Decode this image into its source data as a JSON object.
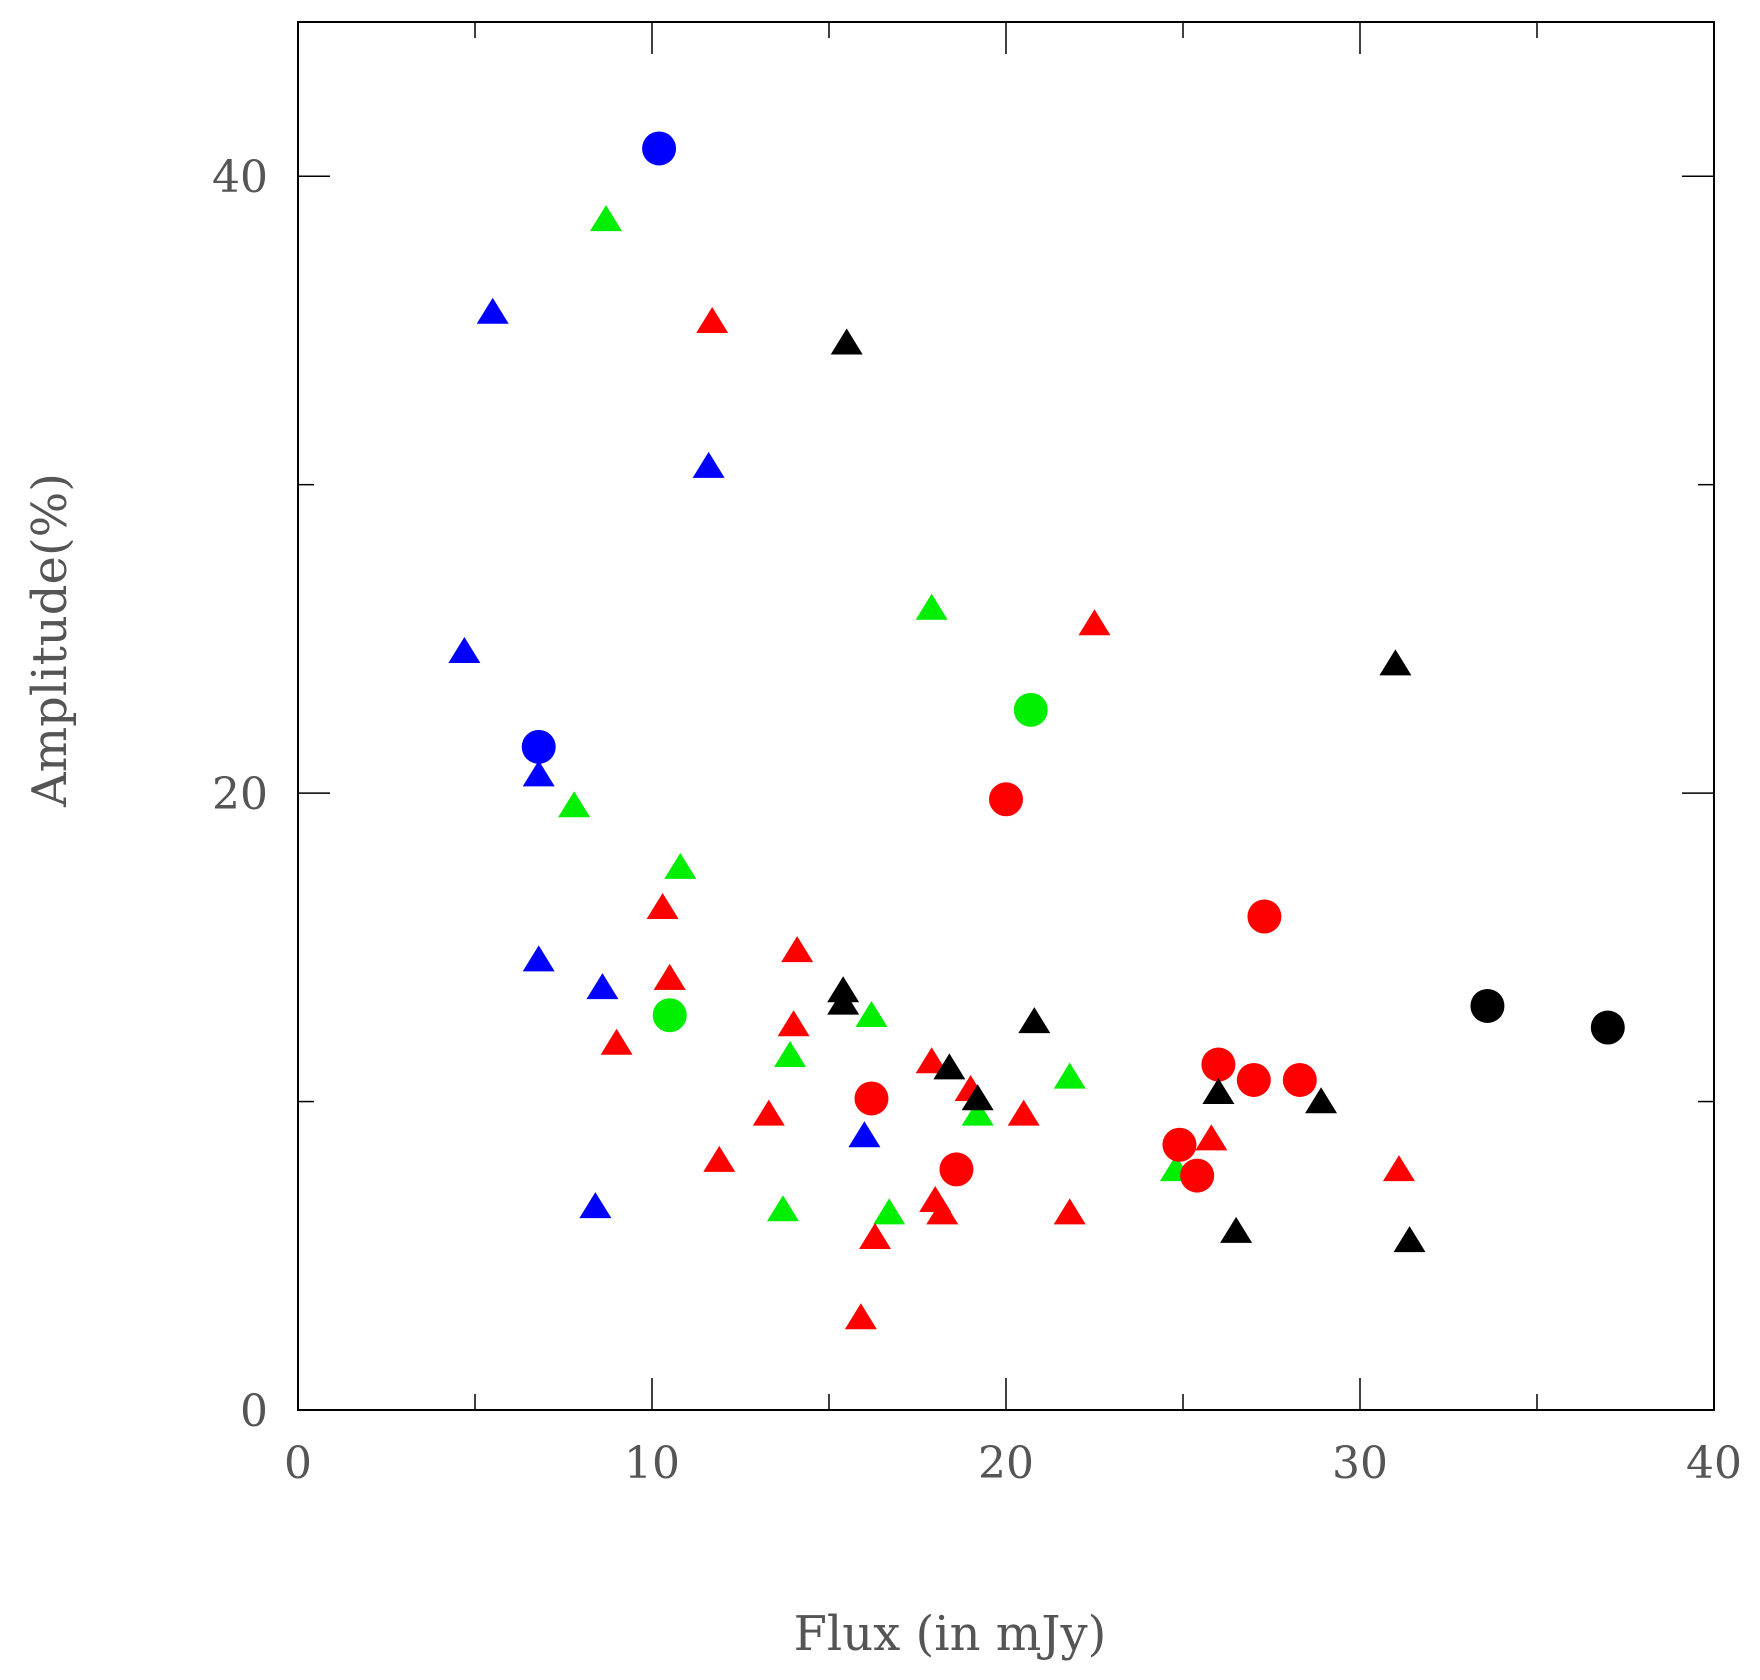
{
  "chart_data": {
    "type": "scatter",
    "xlabel": "Flux (in mJy)",
    "ylabel": "Amplitude(%)",
    "xlim": [
      0,
      40
    ],
    "ylim": [
      0,
      45
    ],
    "xticks_major": [
      0,
      10,
      20,
      30,
      40
    ],
    "xticks_minor": [
      5,
      15,
      25,
      35
    ],
    "yticks_major": [
      0,
      20,
      40
    ],
    "yticks_minor": [
      10,
      30
    ],
    "grid": false,
    "legend": "none",
    "colors": {
      "blue": "#0000ff",
      "green": "#00ee00",
      "red": "#ff0000",
      "black": "#000000"
    },
    "series": [
      {
        "color": "blue",
        "marker": "circle",
        "points": [
          [
            10.2,
            40.9
          ],
          [
            6.8,
            21.5
          ]
        ]
      },
      {
        "color": "blue",
        "marker": "triangle",
        "points": [
          [
            5.5,
            35.5
          ],
          [
            11.6,
            30.5
          ],
          [
            4.7,
            24.5
          ],
          [
            6.8,
            20.5
          ],
          [
            6.8,
            14.5
          ],
          [
            8.6,
            13.6
          ],
          [
            16.0,
            8.8
          ],
          [
            8.4,
            6.5
          ]
        ]
      },
      {
        "color": "green",
        "marker": "circle",
        "points": [
          [
            20.7,
            22.7
          ],
          [
            10.5,
            12.8
          ]
        ]
      },
      {
        "color": "green",
        "marker": "triangle",
        "points": [
          [
            8.7,
            38.5
          ],
          [
            17.9,
            25.9
          ],
          [
            7.8,
            19.5
          ],
          [
            10.8,
            17.5
          ],
          [
            10.5,
            13.9
          ],
          [
            16.2,
            12.7
          ],
          [
            13.9,
            11.4
          ],
          [
            21.8,
            10.7
          ],
          [
            19.2,
            9.5
          ],
          [
            24.8,
            7.7
          ],
          [
            13.7,
            6.4
          ],
          [
            16.7,
            6.3
          ]
        ]
      },
      {
        "color": "red",
        "marker": "circle",
        "points": [
          [
            20.0,
            19.8
          ],
          [
            27.3,
            16.0
          ],
          [
            16.2,
            10.1
          ],
          [
            26.0,
            11.2
          ],
          [
            27.0,
            10.7
          ],
          [
            28.3,
            10.7
          ],
          [
            18.6,
            7.8
          ],
          [
            24.9,
            8.6
          ],
          [
            25.4,
            7.6
          ]
        ]
      },
      {
        "color": "red",
        "marker": "triangle",
        "points": [
          [
            11.7,
            35.2
          ],
          [
            22.5,
            25.4
          ],
          [
            10.3,
            16.2
          ],
          [
            14.1,
            14.8
          ],
          [
            10.5,
            13.9
          ],
          [
            14.0,
            12.4
          ],
          [
            9.0,
            11.8
          ],
          [
            17.9,
            11.2
          ],
          [
            19.0,
            10.3
          ],
          [
            13.3,
            9.5
          ],
          [
            20.5,
            9.5
          ],
          [
            11.9,
            8.0
          ],
          [
            25.8,
            8.7
          ],
          [
            31.1,
            7.7
          ],
          [
            18.0,
            6.7
          ],
          [
            18.2,
            6.3
          ],
          [
            21.8,
            6.3
          ],
          [
            16.3,
            5.5
          ],
          [
            15.9,
            2.9
          ]
        ]
      },
      {
        "color": "black",
        "marker": "circle",
        "points": [
          [
            33.6,
            13.1
          ],
          [
            37.0,
            12.4
          ]
        ]
      },
      {
        "color": "black",
        "marker": "triangle",
        "points": [
          [
            15.5,
            34.5
          ],
          [
            31.0,
            24.1
          ],
          [
            15.4,
            13.5
          ],
          [
            15.4,
            13.1
          ],
          [
            20.8,
            12.5
          ],
          [
            18.4,
            11.0
          ],
          [
            19.2,
            10.0
          ],
          [
            26.0,
            10.2
          ],
          [
            28.9,
            9.9
          ],
          [
            26.5,
            5.7
          ],
          [
            31.4,
            5.4
          ]
        ]
      }
    ]
  }
}
